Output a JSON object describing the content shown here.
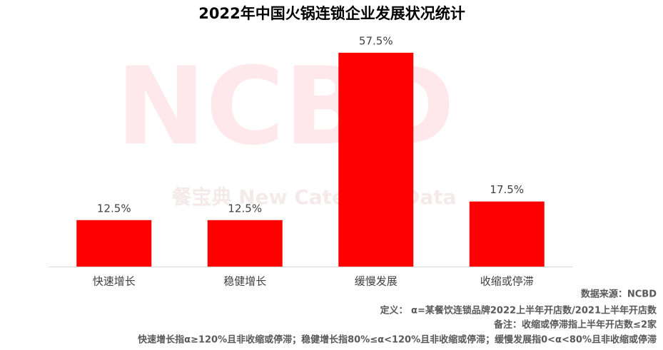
{
  "chart_data": {
    "type": "bar",
    "title": "2022年中国火锅连锁企业发展状况统计",
    "categories": [
      "快速增长",
      "稳健增长",
      "缓慢发展",
      "收缩或停滞"
    ],
    "values": [
      12.5,
      12.5,
      57.5,
      17.5
    ],
    "value_labels": [
      "12.5%",
      "12.5%",
      "57.5%",
      "17.5%"
    ],
    "color": "#ff0000"
  },
  "watermark": {
    "logo": "NCBD",
    "text": "餐宝典 New Category Data"
  },
  "notes": [
    "数据来源：NCBD",
    "定义：  α=某餐饮连锁品牌2022上半年开店数/2021上半年开店数",
    "备注：收缩或停滞指上半年开店数≤2家",
    "快速增长指α≥120%且非收缩或停滞；稳健增长指80%≤α<120%且非收缩或停滞；缓慢发展指0<α<80%且非收缩或停滞"
  ]
}
